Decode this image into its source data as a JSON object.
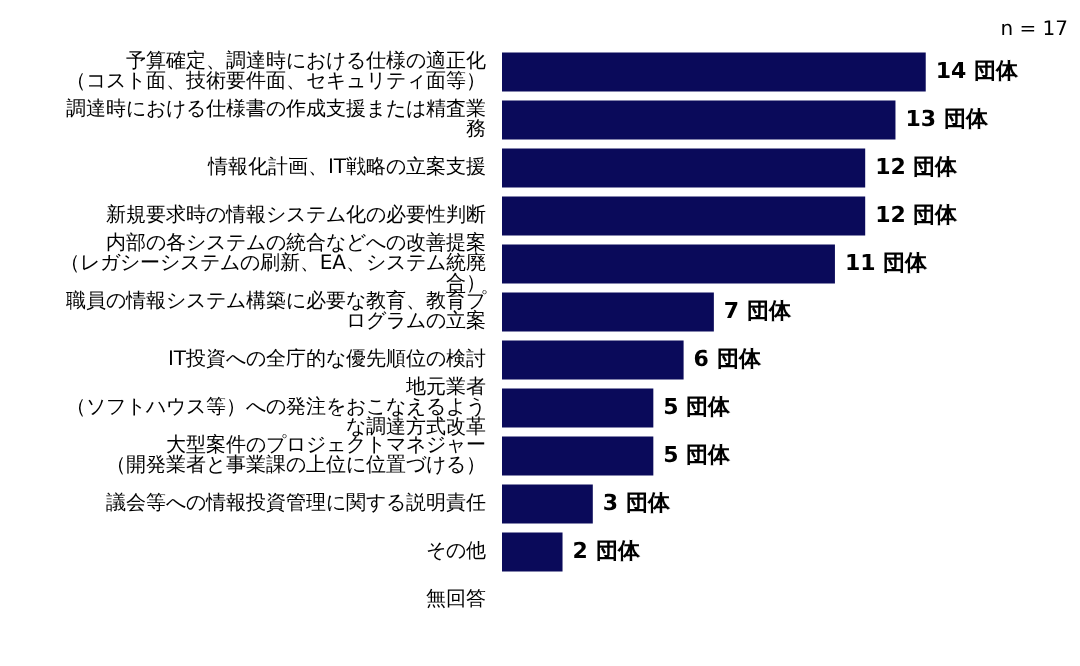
{
  "chart_data": {
    "type": "bar",
    "orientation": "horizontal",
    "categories": [
      "予算確定、調達時における仕様の適正化（コスト面、技術要件面、セキュリティ面等）",
      "調達時における仕様書の作成支援または精査業務",
      "情報化計画、IT戦略の立案支援",
      "新規要求時の情報システム化の必要性判断",
      "内部の各システムの統合などへの改善提案（レガシーシステムの刷新、EA、システム統廃合）",
      "職員の情報システム構築に必要な教育、教育プログラムの立案",
      "IT投資への全庁的な優先順位の検討",
      "地元業者（ソフトハウス等）への発注をおこなえるような調達方式改革",
      "大型案件のプロジェクトマネジャー（開発業者と事業課の上位に位置づける）",
      "議会等への情報投資管理に関する説明責任",
      "その他",
      "無回答"
    ],
    "values": [
      14,
      13,
      12,
      12,
      11,
      7,
      6,
      5,
      5,
      3,
      2,
      0
    ],
    "value_labels": [
      "14 団体",
      "13 団体",
      "12 団体",
      "12 団体",
      "11 団体",
      "7 団体",
      "6 団体",
      "5 団体",
      "5 団体",
      "3 団体",
      "2 団体",
      null
    ],
    "color": "#0a0a5a",
    "annotations": [
      "n = 17"
    ],
    "grid": false,
    "legend": false
  }
}
